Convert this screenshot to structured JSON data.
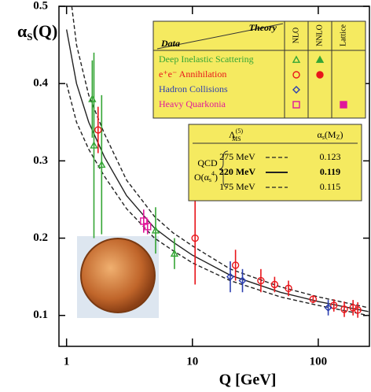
{
  "chart_data": {
    "type": "scatter",
    "ylabel": [
      "α",
      "S",
      "(Q)"
    ],
    "xlabel": "Q [GeV]",
    "xlog": true,
    "xlim": [
      0.87,
      255
    ],
    "xticks": [
      1,
      10,
      100
    ],
    "ylim": [
      0.06,
      0.5
    ],
    "yticks": [
      0.1,
      0.2,
      0.3,
      0.4,
      0.5
    ],
    "legend": {
      "theory": "Theory",
      "data": "Data",
      "columns": [
        "NLO",
        "NNLO",
        "Lattice"
      ]
    },
    "series": [
      {
        "name": "Deep Inelastic Scattering",
        "color": "#35a535",
        "marker": "triangle",
        "legend_fill": [
          false,
          true,
          null
        ],
        "x": [
          1.6,
          1.65,
          1.9,
          5.1,
          7.2
        ],
        "values": [
          0.38,
          0.32,
          0.295,
          0.21,
          0.18
        ],
        "errors": [
          0.05,
          0.12,
          0.09,
          0.03,
          0.02
        ]
      },
      {
        "name": "e⁺e⁻ Annihilation",
        "color": "#e8161b",
        "marker": "circle",
        "legend_fill": [
          false,
          true,
          null
        ],
        "x": [
          1.78,
          10.5,
          22,
          35,
          45,
          58,
          91,
          133,
          161,
          189,
          206
        ],
        "values": [
          0.34,
          0.2,
          0.165,
          0.145,
          0.14,
          0.135,
          0.121,
          0.113,
          0.108,
          0.11,
          0.107
        ],
        "errors": [
          0.03,
          0.06,
          0.02,
          0.015,
          0.01,
          0.01,
          0.005,
          0.008,
          0.01,
          0.01,
          0.01
        ]
      },
      {
        "name": "Hadron Collisions",
        "color": "#2c3fb0",
        "marker": "diamond",
        "legend_fill": [
          false,
          null,
          null
        ],
        "x": [
          20,
          25,
          120
        ],
        "values": [
          0.15,
          0.145,
          0.11
        ],
        "errors": [
          0.02,
          0.015,
          0.01
        ]
      },
      {
        "name": "Heavy Quarkonia",
        "color": "#e0189a",
        "marker": "square",
        "legend_fill": [
          false,
          null,
          true
        ],
        "x": [
          4.1,
          4.4
        ],
        "values": [
          0.222,
          0.215
        ],
        "errors": [
          0.015,
          0.01
        ]
      }
    ],
    "theory_box": {
      "lambda": [
        "Λ",
        "(5)",
        "MS"
      ],
      "alpha": [
        "α",
        "s",
        "(M",
        "Z",
        ")"
      ],
      "qcd": "QCD",
      "order": [
        "O(α",
        "s",
        "4",
        ")"
      ]
    },
    "theory": [
      {
        "lambda": "275 MeV",
        "alpha_mz": 0.123,
        "style": "dashed",
        "bold": false,
        "x": [
          1.1,
          1.2,
          1.5,
          2,
          3,
          5,
          7,
          10,
          20,
          50,
          100,
          250
        ],
        "values": [
          0.5,
          0.45,
          0.385,
          0.335,
          0.275,
          0.228,
          0.207,
          0.19,
          0.16,
          0.137,
          0.124,
          0.11
        ]
      },
      {
        "lambda": "220 MeV",
        "alpha_mz": 0.119,
        "style": "solid",
        "bold": true,
        "x": [
          1.0,
          1.2,
          1.5,
          2,
          3,
          5,
          7,
          10,
          20,
          50,
          100,
          250
        ],
        "values": [
          0.47,
          0.4,
          0.35,
          0.305,
          0.255,
          0.213,
          0.195,
          0.178,
          0.152,
          0.13,
          0.118,
          0.105
        ]
      },
      {
        "lambda": "175 MeV",
        "alpha_mz": 0.115,
        "style": "dashed",
        "bold": false,
        "x": [
          1.0,
          1.2,
          1.5,
          2,
          3,
          5,
          7,
          10,
          20,
          50,
          100,
          250
        ],
        "values": [
          0.4,
          0.35,
          0.315,
          0.28,
          0.238,
          0.2,
          0.184,
          0.168,
          0.145,
          0.124,
          0.113,
          0.1
        ]
      }
    ]
  }
}
